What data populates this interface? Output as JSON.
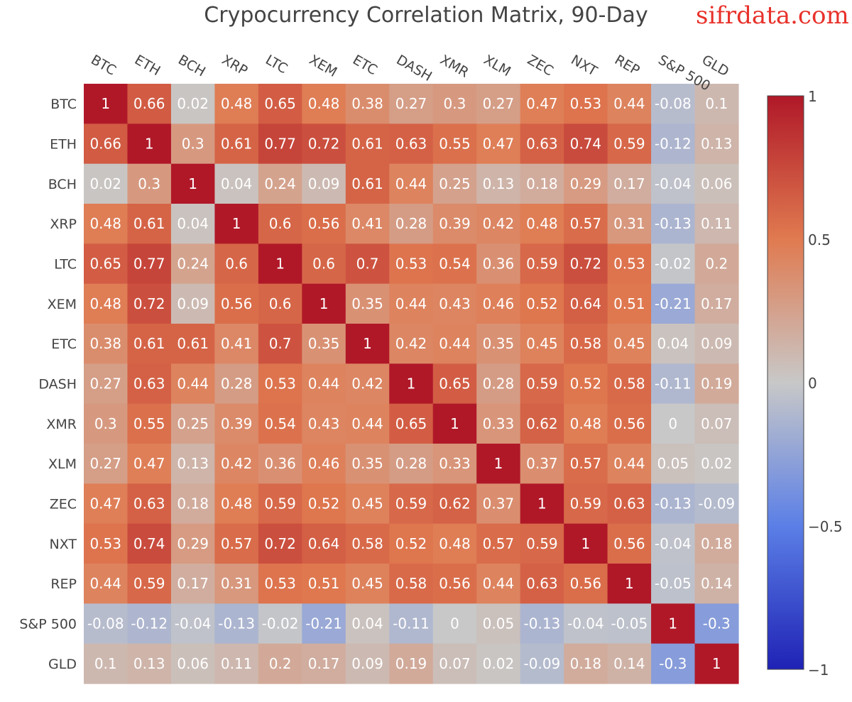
{
  "header": {
    "title": "Crypocurrency Correlation Matrix, 90-Day",
    "watermark": "sifrdata.com"
  },
  "chart_data": {
    "type": "heatmap",
    "title": "Crypocurrency Correlation Matrix, 90-Day",
    "x_labels": [
      "BTC",
      "ETH",
      "BCH",
      "XRP",
      "LTC",
      "XEM",
      "ETC",
      "DASH",
      "XMR",
      "XLM",
      "ZEC",
      "NXT",
      "REP",
      "S&P 500",
      "GLD"
    ],
    "y_labels": [
      "BTC",
      "ETH",
      "BCH",
      "XRP",
      "LTC",
      "XEM",
      "ETC",
      "DASH",
      "XMR",
      "XLM",
      "ZEC",
      "NXT",
      "REP",
      "S&P 500",
      "GLD"
    ],
    "values": [
      [
        1,
        0.66,
        0.02,
        0.48,
        0.65,
        0.48,
        0.38,
        0.27,
        0.3,
        0.27,
        0.47,
        0.53,
        0.44,
        -0.08,
        0.1
      ],
      [
        0.66,
        1,
        0.3,
        0.61,
        0.77,
        0.72,
        0.61,
        0.63,
        0.55,
        0.47,
        0.63,
        0.74,
        0.59,
        -0.12,
        0.13
      ],
      [
        0.02,
        0.3,
        1,
        0.04,
        0.24,
        0.09,
        0.61,
        0.44,
        0.25,
        0.13,
        0.18,
        0.29,
        0.17,
        -0.04,
        0.06
      ],
      [
        0.48,
        0.61,
        0.04,
        1,
        0.6,
        0.56,
        0.41,
        0.28,
        0.39,
        0.42,
        0.48,
        0.57,
        0.31,
        -0.13,
        0.11
      ],
      [
        0.65,
        0.77,
        0.24,
        0.6,
        1,
        0.6,
        0.7,
        0.53,
        0.54,
        0.36,
        0.59,
        0.72,
        0.53,
        -0.02,
        0.2
      ],
      [
        0.48,
        0.72,
        0.09,
        0.56,
        0.6,
        1,
        0.35,
        0.44,
        0.43,
        0.46,
        0.52,
        0.64,
        0.51,
        -0.21,
        0.17
      ],
      [
        0.38,
        0.61,
        0.61,
        0.41,
        0.7,
        0.35,
        1,
        0.42,
        0.44,
        0.35,
        0.45,
        0.58,
        0.45,
        0.04,
        0.09
      ],
      [
        0.27,
        0.63,
        0.44,
        0.28,
        0.53,
        0.44,
        0.42,
        1,
        0.65,
        0.28,
        0.59,
        0.52,
        0.58,
        -0.11,
        0.19
      ],
      [
        0.3,
        0.55,
        0.25,
        0.39,
        0.54,
        0.43,
        0.44,
        0.65,
        1,
        0.33,
        0.62,
        0.48,
        0.56,
        0,
        0.07
      ],
      [
        0.27,
        0.47,
        0.13,
        0.42,
        0.36,
        0.46,
        0.35,
        0.28,
        0.33,
        1,
        0.37,
        0.57,
        0.44,
        0.05,
        0.02
      ],
      [
        0.47,
        0.63,
        0.18,
        0.48,
        0.59,
        0.52,
        0.45,
        0.59,
        0.62,
        0.37,
        1,
        0.59,
        0.63,
        -0.13,
        -0.09
      ],
      [
        0.53,
        0.74,
        0.29,
        0.57,
        0.72,
        0.64,
        0.58,
        0.52,
        0.48,
        0.57,
        0.59,
        1,
        0.56,
        -0.04,
        0.18
      ],
      [
        0.44,
        0.59,
        0.17,
        0.31,
        0.53,
        0.51,
        0.45,
        0.58,
        0.56,
        0.44,
        0.63,
        0.56,
        1,
        -0.05,
        0.14
      ],
      [
        -0.08,
        -0.12,
        -0.04,
        -0.13,
        -0.02,
        -0.21,
        0.04,
        -0.11,
        0,
        0.05,
        -0.13,
        -0.04,
        -0.05,
        1,
        -0.3
      ],
      [
        0.1,
        0.13,
        0.06,
        0.11,
        0.2,
        0.17,
        0.09,
        0.19,
        0.07,
        0.02,
        -0.09,
        0.18,
        0.14,
        -0.3,
        1
      ]
    ],
    "zlim": [
      -1,
      1
    ],
    "colorscale": {
      "name": "coolwarm",
      "stops": [
        [
          -1,
          "#1f22b5"
        ],
        [
          -0.5,
          "#5b7fe6"
        ],
        [
          0,
          "#c8c8c8"
        ],
        [
          0.5,
          "#e07a50"
        ],
        [
          1,
          "#b01828"
        ]
      ]
    },
    "colorbar": {
      "ticks": [
        1,
        0.5,
        0,
        -0.5,
        -1
      ],
      "tick_labels": [
        "1",
        "0.5",
        "0",
        "−0.5",
        "−1"
      ],
      "position": "right"
    },
    "grid": false
  }
}
